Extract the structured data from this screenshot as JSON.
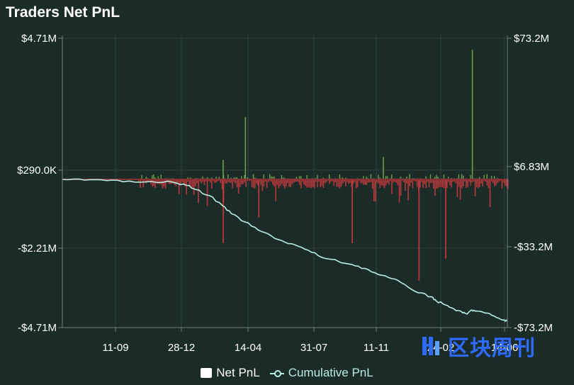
{
  "chart_data": {
    "type": "bar+line",
    "title": "Traders Net PnL",
    "x_tick_labels": [
      "11-09",
      "28-12",
      "14-04",
      "31-07",
      "11-11",
      "24-02",
      "14-06"
    ],
    "left_axis": {
      "tick_labels": [
        "$4.71M",
        "$290.0K",
        "-$2.21M",
        "-$4.71M"
      ],
      "tick_values": [
        4710000,
        290000,
        -2210000,
        -4710000
      ],
      "ylim": [
        -4710000,
        4710000
      ]
    },
    "right_axis": {
      "tick_labels": [
        "$73.2M",
        "$6.83M",
        "-$33.2M",
        "-$73.2M"
      ],
      "tick_values": [
        73200000,
        6830000,
        -33200000,
        -73200000
      ],
      "ylim": [
        -73200000,
        73200000
      ]
    },
    "grid": true,
    "legend_position": "bottom",
    "series": [
      {
        "name": "Net PnL",
        "kind": "bar",
        "axis": "left",
        "positive_color": "#6b9e4a",
        "negative_color": "#b8383c",
        "notable_values": [
          {
            "x_frac": 0.41,
            "value": 2080000
          },
          {
            "x_frac": 0.36,
            "value": 650000
          },
          {
            "x_frac": 0.72,
            "value": 750000
          },
          {
            "x_frac": 0.92,
            "value": 4330000
          },
          {
            "x_frac": 0.36,
            "value": -2020000
          },
          {
            "x_frac": 0.65,
            "value": -2030000
          },
          {
            "x_frac": 0.8,
            "value": -3220000
          },
          {
            "x_frac": 0.86,
            "value": -2520000
          },
          {
            "x_frac": 0.44,
            "value": -1220000
          }
        ]
      },
      {
        "name": "Cumulative PnL",
        "kind": "line",
        "axis": "right",
        "color": "#b8ece0",
        "points": [
          [
            0.0,
            0
          ],
          [
            0.05,
            -400000
          ],
          [
            0.1,
            -600000
          ],
          [
            0.15,
            -800000
          ],
          [
            0.2,
            -1000000
          ],
          [
            0.25,
            -1500000
          ],
          [
            0.28,
            -3000000
          ],
          [
            0.3,
            -5000000
          ],
          [
            0.33,
            -8000000
          ],
          [
            0.36,
            -13000000
          ],
          [
            0.38,
            -17000000
          ],
          [
            0.41,
            -21000000
          ],
          [
            0.44,
            -25000000
          ],
          [
            0.47,
            -28000000
          ],
          [
            0.5,
            -31000000
          ],
          [
            0.53,
            -33000000
          ],
          [
            0.56,
            -36000000
          ],
          [
            0.59,
            -39000000
          ],
          [
            0.62,
            -40500000
          ],
          [
            0.65,
            -42000000
          ],
          [
            0.68,
            -44000000
          ],
          [
            0.71,
            -47000000
          ],
          [
            0.74,
            -49000000
          ],
          [
            0.77,
            -52000000
          ],
          [
            0.8,
            -56000000
          ],
          [
            0.83,
            -58000000
          ],
          [
            0.84,
            -60000000
          ],
          [
            0.86,
            -62000000
          ],
          [
            0.88,
            -64000000
          ],
          [
            0.9,
            -66000000
          ],
          [
            0.91,
            -66500000
          ],
          [
            0.92,
            -64500000
          ],
          [
            0.93,
            -65000000
          ],
          [
            0.95,
            -66000000
          ],
          [
            0.97,
            -67500000
          ],
          [
            0.99,
            -69500000
          ],
          [
            1.0,
            -70000000
          ]
        ]
      }
    ]
  },
  "legend": {
    "net_label": "Net PnL",
    "cum_label": "Cumulative PnL"
  },
  "watermark": {
    "text": "区块周刊",
    "color": "#2f6bff"
  }
}
